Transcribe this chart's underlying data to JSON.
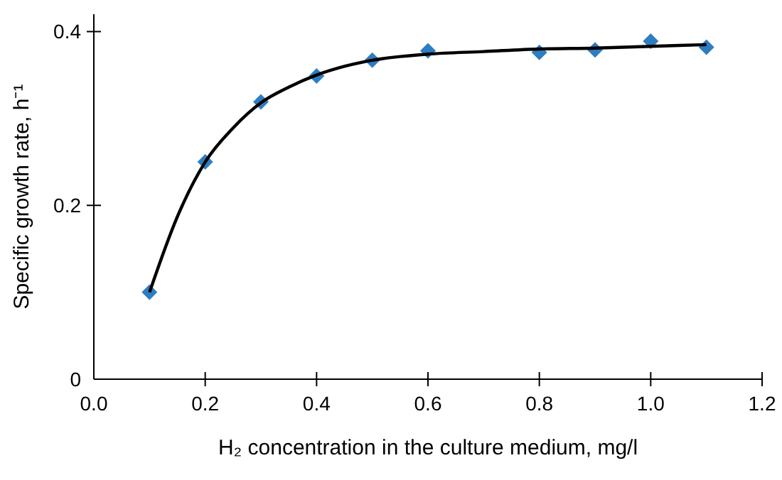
{
  "chart_data": {
    "type": "scatter",
    "xlabel": "H₂ concentration in the culture medium, mg/l",
    "ylabel": "Specific growth rate, h⁻¹",
    "series": [
      {
        "color": "#2e7dc1",
        "marker": "diamond",
        "x": [
          0.1,
          0.2,
          0.3,
          0.4,
          0.5,
          0.6,
          0.8,
          0.9,
          1.0,
          1.1
        ],
        "values": [
          0.1,
          0.25,
          0.319,
          0.349,
          0.367,
          0.378,
          0.376,
          0.379,
          0.389,
          0.382
        ]
      },
      {
        "type": "line",
        "color": "#000000",
        "marker": "none",
        "line_style": "solid",
        "x": [
          0.1,
          0.15,
          0.2,
          0.25,
          0.3,
          0.35,
          0.4,
          0.45,
          0.5,
          0.6,
          0.7,
          0.8,
          0.9,
          1.0,
          1.1
        ],
        "values": [
          0.1,
          0.187,
          0.25,
          0.289,
          0.318,
          0.336,
          0.35,
          0.36,
          0.367,
          0.374,
          0.377,
          0.38,
          0.381,
          0.383,
          0.385
        ]
      }
    ],
    "xlim": [
      0,
      1.2
    ],
    "xticks": [
      {
        "value": 0,
        "label": "0.0"
      },
      0.2,
      0.4,
      0.6,
      0.8,
      {
        "value": 1,
        "label": "1.0"
      },
      1.2
    ],
    "ylim": [
      0,
      0.42
    ],
    "yticks": [
      0,
      0.2,
      0.4
    ],
    "grid": false
  }
}
